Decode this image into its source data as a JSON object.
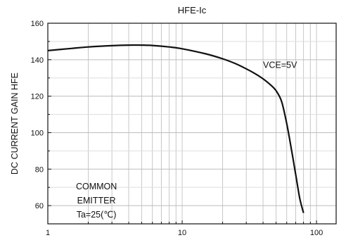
{
  "chart_data": {
    "type": "line",
    "title": "HFE-Ic",
    "xlabel": "",
    "ylabel": "DC CURRENT GAIN HFE",
    "x_scale": "log",
    "xlim": [
      1,
      140
    ],
    "ylim": [
      50,
      160
    ],
    "x_ticks": [
      1,
      10,
      100
    ],
    "x_tick_labels": [
      "1",
      "10",
      "100"
    ],
    "y_ticks": [
      60,
      80,
      100,
      120,
      140,
      160
    ],
    "y_tick_labels": [
      "60",
      "80",
      "100",
      "120",
      "140",
      "160"
    ],
    "grid": true,
    "series": [
      {
        "name": "VCE=5V",
        "x": [
          1,
          1.5,
          2,
          3,
          4,
          5,
          6,
          8,
          10,
          15,
          20,
          25,
          30,
          35,
          40,
          45,
          50,
          55,
          60,
          65,
          70,
          75,
          80
        ],
        "y": [
          145,
          146.2,
          147,
          147.7,
          148,
          148,
          147.8,
          147,
          146,
          143.2,
          140.5,
          137.8,
          135,
          132.3,
          129.5,
          126.5,
          123,
          117,
          105,
          91,
          77,
          64,
          56
        ]
      }
    ],
    "annotations": [
      {
        "text": "VCE=5V",
        "x": 40,
        "y": 137
      },
      {
        "text": "COMMON",
        "x": 2.3,
        "y": 60
      },
      {
        "text": "EMITTER",
        "x": 2.3,
        "y": 60
      },
      {
        "text": "Ta=25(℃)",
        "x": 2.3,
        "y": 60
      }
    ]
  }
}
